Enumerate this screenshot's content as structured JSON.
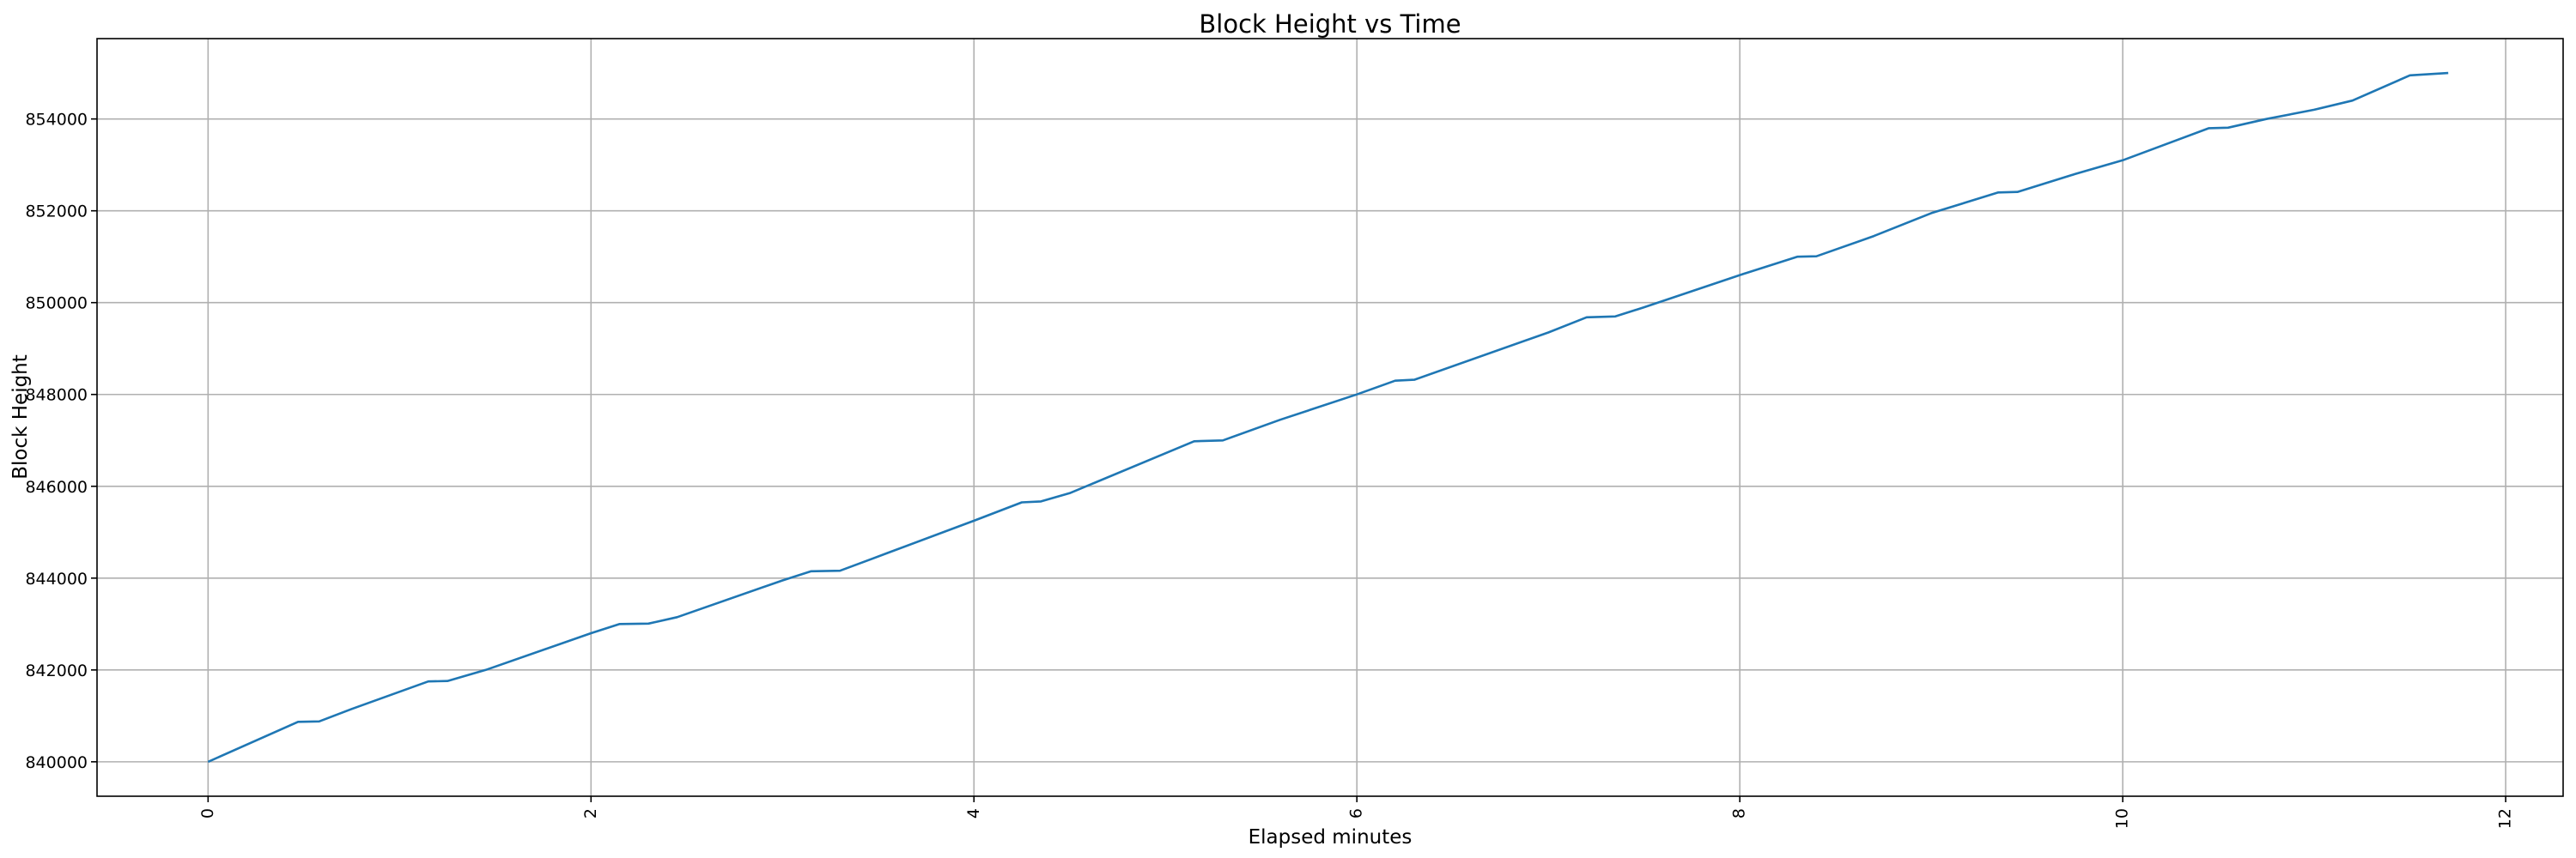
{
  "chart_data": {
    "type": "line",
    "title": "Block Height vs Time",
    "xlabel": "Elapsed minutes",
    "ylabel": "Block Height",
    "xlim": [
      -0.58,
      12.3
    ],
    "ylim": [
      839250,
      855750
    ],
    "xticks": [
      "0",
      "2",
      "4",
      "6",
      "8",
      "10",
      "12"
    ],
    "yticks": [
      "840000",
      "842000",
      "844000",
      "846000",
      "848000",
      "850000",
      "852000",
      "854000"
    ],
    "xtick_rotation": 90,
    "grid": true,
    "line_color": "#1f77b4",
    "series": [
      {
        "x": [
          0,
          0.47,
          0.58,
          0.75,
          1.15,
          1.25,
          1.45,
          2.0,
          2.15,
          2.3,
          2.45,
          3.0,
          3.15,
          3.3,
          3.55,
          4.0,
          4.25,
          4.35,
          4.5,
          5.15,
          5.3,
          5.6,
          6.0,
          6.2,
          6.3,
          7.0,
          7.2,
          7.35,
          7.5,
          8.0,
          8.3,
          8.4,
          8.7,
          9.0,
          9.35,
          9.45,
          9.75,
          10.0,
          10.45,
          10.55,
          10.75,
          11.0,
          11.2,
          11.5,
          11.7
        ],
        "y": [
          840000,
          840870,
          840880,
          841150,
          841750,
          841760,
          842000,
          842800,
          843000,
          843010,
          843150,
          843950,
          844150,
          844160,
          844550,
          845250,
          845650,
          845670,
          845850,
          846980,
          847000,
          847450,
          848000,
          848300,
          848320,
          849350,
          849680,
          849700,
          849900,
          850600,
          851000,
          851010,
          851450,
          851950,
          852400,
          852410,
          852800,
          853100,
          853800,
          853810,
          854000,
          854200,
          854400,
          854950,
          855000
        ]
      }
    ]
  }
}
